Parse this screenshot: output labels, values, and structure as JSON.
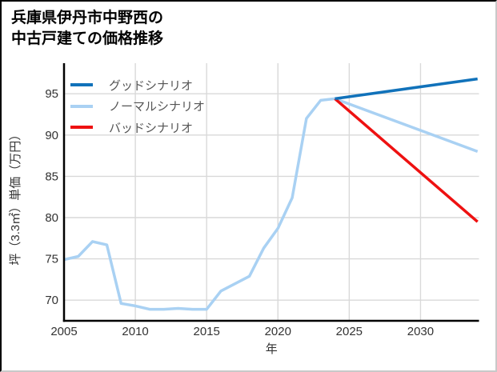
{
  "title": {
    "line1": "兵庫県伊丹市中野西の",
    "line2": "中古戸建ての価格推移"
  },
  "chart_data": {
    "type": "line",
    "title": "兵庫県伊丹市中野西の中古戸建ての価格推移",
    "xlabel": "年",
    "ylabel": "坪（3.3㎡）単価（万円）",
    "xlim": [
      2005,
      2034.1
    ],
    "ylim": [
      67.5,
      98.7
    ],
    "xticks": [
      2005,
      2010,
      2015,
      2020,
      2025,
      2030
    ],
    "yticks": [
      70,
      75,
      80,
      85,
      90,
      95
    ],
    "grid": true,
    "legend_position": "top-left",
    "colors": {
      "good": "#1172ba",
      "normal": "#a9d1f3",
      "bad": "#ee1111",
      "gridline": "#d9d9d9",
      "spine": "#000000",
      "tick_text": "#333333",
      "legend_text": "#555555"
    },
    "series": [
      {
        "name": "グッドシナリオ",
        "color_key": "good",
        "x": [
          2024,
          2034
        ],
        "values": [
          94.4,
          96.8
        ]
      },
      {
        "name": "ノーマルシナリオ",
        "color_key": "normal",
        "x": [
          2005,
          2006,
          2007,
          2008,
          2009,
          2010,
          2011,
          2012,
          2013,
          2014,
          2015,
          2016,
          2017,
          2018,
          2019,
          2020,
          2021,
          2022,
          2023,
          2024,
          2034
        ],
        "values": [
          74.9,
          75.3,
          77.1,
          76.7,
          69.6,
          69.3,
          68.9,
          68.9,
          69.0,
          68.9,
          68.9,
          71.1,
          72.0,
          72.9,
          76.3,
          78.7,
          82.4,
          92.0,
          94.2,
          94.4,
          88.0
        ]
      },
      {
        "name": "バッドシナリオ",
        "color_key": "bad",
        "x": [
          2024,
          2034
        ],
        "values": [
          94.4,
          79.5
        ]
      }
    ]
  }
}
